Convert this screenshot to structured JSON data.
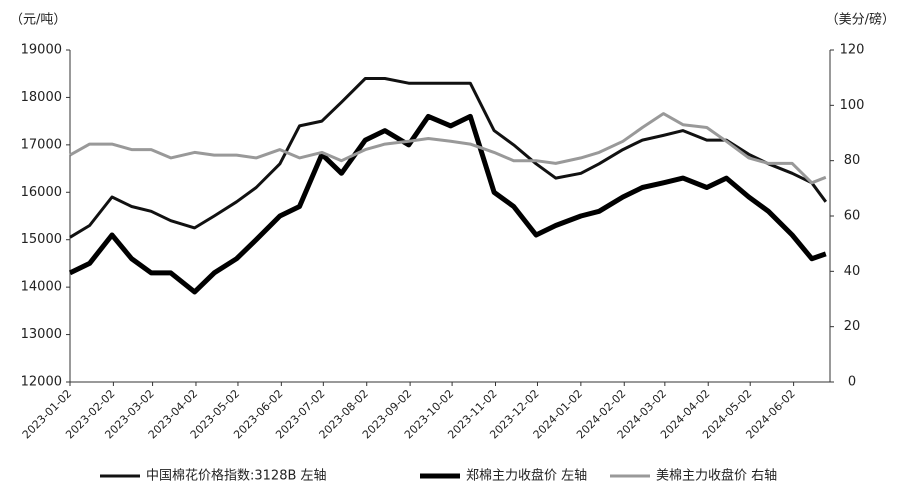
{
  "chart_data": {
    "type": "line",
    "y_unit_label": "（元/吨）",
    "y2_unit_label": "（美分/磅）",
    "x": [
      "2023-01-02",
      "2023-01-16",
      "2023-02-01",
      "2023-02-15",
      "2023-03-01",
      "2023-03-15",
      "2023-04-01",
      "2023-04-15",
      "2023-05-01",
      "2023-05-15",
      "2023-06-01",
      "2023-06-15",
      "2023-07-01",
      "2023-07-15",
      "2023-08-01",
      "2023-08-15",
      "2023-09-01",
      "2023-09-15",
      "2023-10-01",
      "2023-10-15",
      "2023-11-01",
      "2023-11-15",
      "2023-12-01",
      "2023-12-15",
      "2024-01-02",
      "2024-01-15",
      "2024-02-01",
      "2024-02-15",
      "2024-03-01",
      "2024-03-15",
      "2024-04-01",
      "2024-04-15",
      "2024-05-01",
      "2024-05-15",
      "2024-06-01",
      "2024-06-15",
      "2024-06-25"
    ],
    "xlim": [
      "2023-01-02",
      "2024-06-28"
    ],
    "xticks": [
      "2023-01-02",
      "2023-02-02",
      "2023-03-02",
      "2023-04-02",
      "2023-05-02",
      "2023-06-02",
      "2023-07-02",
      "2023-08-02",
      "2023-09-02",
      "2023-10-02",
      "2023-11-02",
      "2023-12-02",
      "2024-01-02",
      "2024-02-02",
      "2024-03-02",
      "2024-04-02",
      "2024-05-02",
      "2024-06-02"
    ],
    "ylim": [
      12000,
      19000
    ],
    "yticks": [
      12000,
      13000,
      14000,
      15000,
      16000,
      17000,
      18000,
      19000
    ],
    "y2lim": [
      0,
      120
    ],
    "y2ticks": [
      0,
      20,
      40,
      60,
      80,
      100,
      120
    ],
    "series": [
      {
        "name": "中国棉花价格指数:3128B 左轴",
        "color": "#111111",
        "width": 3,
        "values": [
          15050,
          15300,
          15900,
          15700,
          15600,
          15400,
          15250,
          15500,
          15800,
          16100,
          16600,
          17400,
          17500,
          17900,
          18400,
          18400,
          18300,
          18300,
          18300,
          18300,
          17300,
          17000,
          16600,
          16300,
          16400,
          16600,
          16900,
          17100,
          17200,
          17300,
          17100,
          17100,
          16800,
          16600,
          16400,
          16200,
          15800
        ]
      },
      {
        "name": "郑棉主力收盘价 左轴",
        "color": "#000000",
        "width": 5,
        "values": [
          14300,
          14500,
          15100,
          14600,
          14300,
          14300,
          13900,
          14300,
          14600,
          15000,
          15500,
          15700,
          16800,
          16400,
          17100,
          17300,
          17000,
          17600,
          17400,
          17600,
          16000,
          15700,
          15100,
          15300,
          15500,
          15600,
          15900,
          16100,
          16200,
          16300,
          16100,
          16300,
          15900,
          15600,
          15100,
          14600,
          14700
        ]
      },
      {
        "name": "美棉主力收盘价 右轴",
        "color": "#999999",
        "width": 3,
        "axis": "y2",
        "values": [
          82,
          86,
          86,
          84,
          84,
          81,
          83,
          82,
          82,
          81,
          84,
          81,
          83,
          80,
          84,
          86,
          87,
          88,
          87,
          86,
          83,
          80,
          80,
          79,
          81,
          83,
          87,
          92,
          97,
          93,
          92,
          87,
          81,
          79,
          79,
          72,
          74
        ]
      }
    ]
  }
}
